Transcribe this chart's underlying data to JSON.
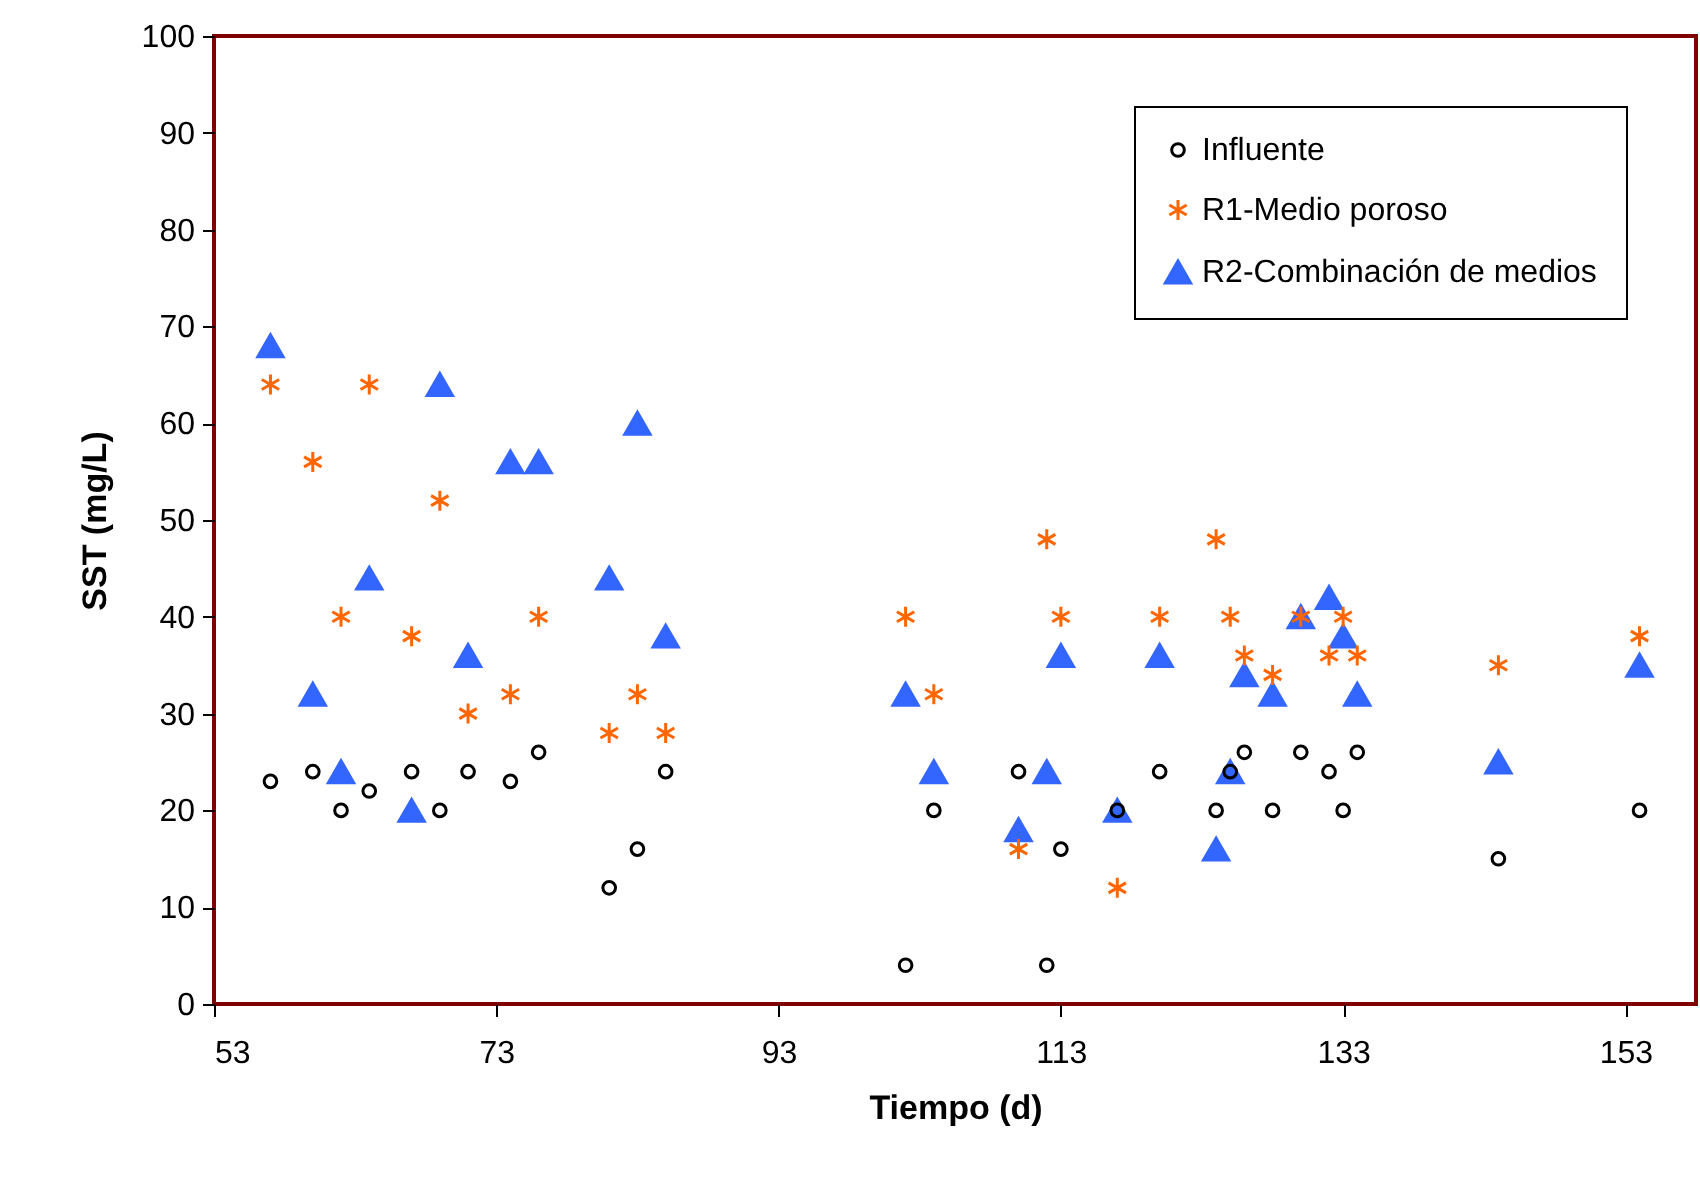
{
  "chart_data": {
    "type": "scatter",
    "xlabel": "Tiempo (d)",
    "ylabel": "SST (mg/L)",
    "xlim": [
      53,
      158
    ],
    "xticks": [
      53,
      73,
      93,
      113,
      133,
      153
    ],
    "ylim": [
      0,
      100
    ],
    "yticks": [
      0,
      10,
      20,
      30,
      40,
      50,
      60,
      70,
      80,
      90,
      100
    ],
    "grid": false,
    "legend": "top right",
    "series": [
      {
        "name": "Influente",
        "color": "#000000",
        "marker": "circle",
        "x": [
          57,
          60,
          62,
          64,
          67,
          69,
          71,
          74,
          76,
          81,
          83,
          85,
          102,
          104,
          110,
          112,
          113,
          117,
          120,
          124,
          125,
          126,
          128,
          130,
          132,
          133,
          134,
          144,
          154
        ],
        "values": [
          23,
          24,
          20,
          22,
          24,
          20,
          24,
          23,
          26,
          12,
          16,
          24,
          4,
          20,
          24,
          4,
          16,
          20,
          24,
          20,
          24,
          26,
          20,
          26,
          24,
          20,
          26,
          15,
          20
        ]
      },
      {
        "name": "R1-Medio poroso",
        "color": "#ff6600",
        "marker": "cross",
        "x": [
          57,
          60,
          62,
          64,
          67,
          69,
          71,
          74,
          76,
          81,
          83,
          85,
          102,
          104,
          110,
          112,
          113,
          117,
          120,
          124,
          125,
          126,
          128,
          130,
          132,
          133,
          134,
          144,
          154
        ],
        "values": [
          64,
          56,
          40,
          64,
          38,
          52,
          30,
          32,
          40,
          28,
          32,
          28,
          40,
          32,
          16,
          48,
          40,
          12,
          40,
          48,
          40,
          36,
          34,
          40,
          36,
          40,
          36,
          35,
          38
        ]
      },
      {
        "name": "R2-Combinación de medios",
        "color": "#3366ff",
        "marker": "triangle",
        "x": [
          57,
          60,
          62,
          64,
          67,
          69,
          71,
          74,
          76,
          81,
          83,
          85,
          102,
          104,
          110,
          112,
          113,
          117,
          120,
          124,
          125,
          126,
          128,
          130,
          132,
          133,
          134,
          144,
          154
        ],
        "values": [
          68,
          32,
          24,
          44,
          20,
          64,
          36,
          56,
          56,
          44,
          60,
          38,
          32,
          24,
          18,
          24,
          36,
          20,
          36,
          16,
          24,
          34,
          32,
          40,
          42,
          38,
          32,
          25,
          35
        ]
      }
    ]
  }
}
